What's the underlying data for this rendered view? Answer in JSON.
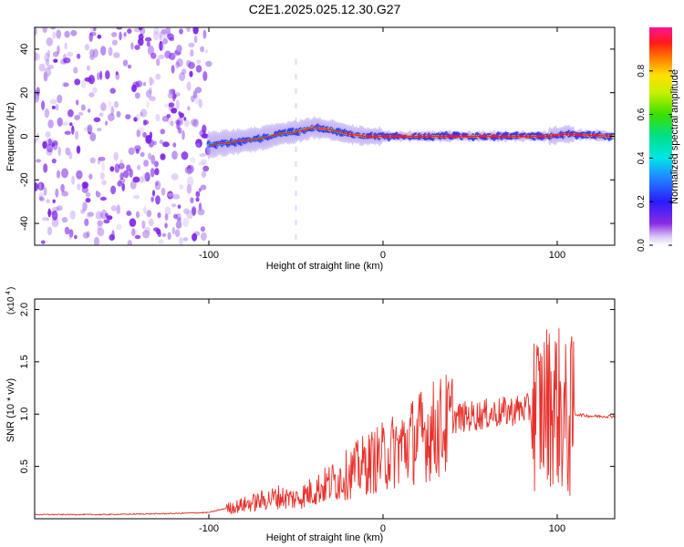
{
  "title": "C2E1.2025.025.12.30.G27",
  "chart_data": [
    {
      "type": "heatmap",
      "xlabel": "Height of straight line (km)",
      "ylabel": "Frequency (Hz)",
      "xlim": [
        -200,
        133
      ],
      "ylim": [
        -50,
        50
      ],
      "x_ticks": [
        -100,
        0,
        100
      ],
      "y_ticks": [
        -40,
        -20,
        0,
        20,
        40
      ],
      "x_tick_labels": [
        "-100",
        "0",
        "100"
      ],
      "y_tick_labels": [
        "-40",
        "-20",
        "0",
        "20",
        "40"
      ],
      "noise_region_x": [
        -200,
        -100
      ],
      "center_frequency_trace": {
        "x": [
          -100,
          -90,
          -80,
          -70,
          -60,
          -50,
          -40,
          -30,
          -20,
          -10,
          0,
          20,
          40,
          60,
          80,
          95,
          105,
          133
        ],
        "y": [
          -4,
          -3,
          -2,
          -1,
          1,
          2,
          4,
          3,
          1,
          0,
          0,
          0,
          0,
          0,
          0,
          0,
          1,
          0
        ]
      },
      "colorbar": {
        "label": "Normalized spectral amplitude",
        "range": [
          0,
          1
        ],
        "ticks": [
          0,
          0.2,
          0.4,
          0.6,
          0.8
        ],
        "tick_labels": [
          "0.0",
          "0.2",
          "0.4",
          "0.6",
          "0.8"
        ]
      }
    },
    {
      "type": "line",
      "xlabel": "Height of straight line (km)",
      "ylabel": "SNR (10 * v/v)",
      "scale_note": "(x10^4)",
      "xlim": [
        -200,
        133
      ],
      "ylim": [
        0,
        2.1
      ],
      "x_ticks": [
        -100,
        0,
        100
      ],
      "y_ticks": [
        0.5,
        1.0,
        1.5,
        2.0
      ],
      "x_tick_labels": [
        "-100",
        "0",
        "100"
      ],
      "y_tick_labels": [
        "0.5",
        "1.0",
        "1.5",
        "2.0"
      ],
      "series": [
        {
          "color": "#e8302a",
          "x": [
            -200,
            -160,
            -120,
            -100,
            -90,
            -80,
            -70,
            -60,
            -50,
            -40,
            -30,
            -20,
            -10,
            0,
            10,
            20,
            30,
            40,
            50,
            60,
            70,
            80,
            90,
            95,
            100,
            105,
            110,
            120,
            133
          ],
          "y": [
            0.04,
            0.04,
            0.05,
            0.06,
            0.1,
            0.14,
            0.18,
            0.22,
            0.2,
            0.28,
            0.36,
            0.45,
            0.55,
            0.62,
            0.72,
            0.82,
            0.9,
            0.96,
            0.98,
            1.0,
            1.02,
            1.05,
            1.05,
            1.1,
            1.1,
            0.9,
            1.0,
            0.98,
            0.98
          ]
        }
      ]
    }
  ],
  "colors": {
    "line": "#e8302a",
    "noise": "#7b1fe8"
  }
}
